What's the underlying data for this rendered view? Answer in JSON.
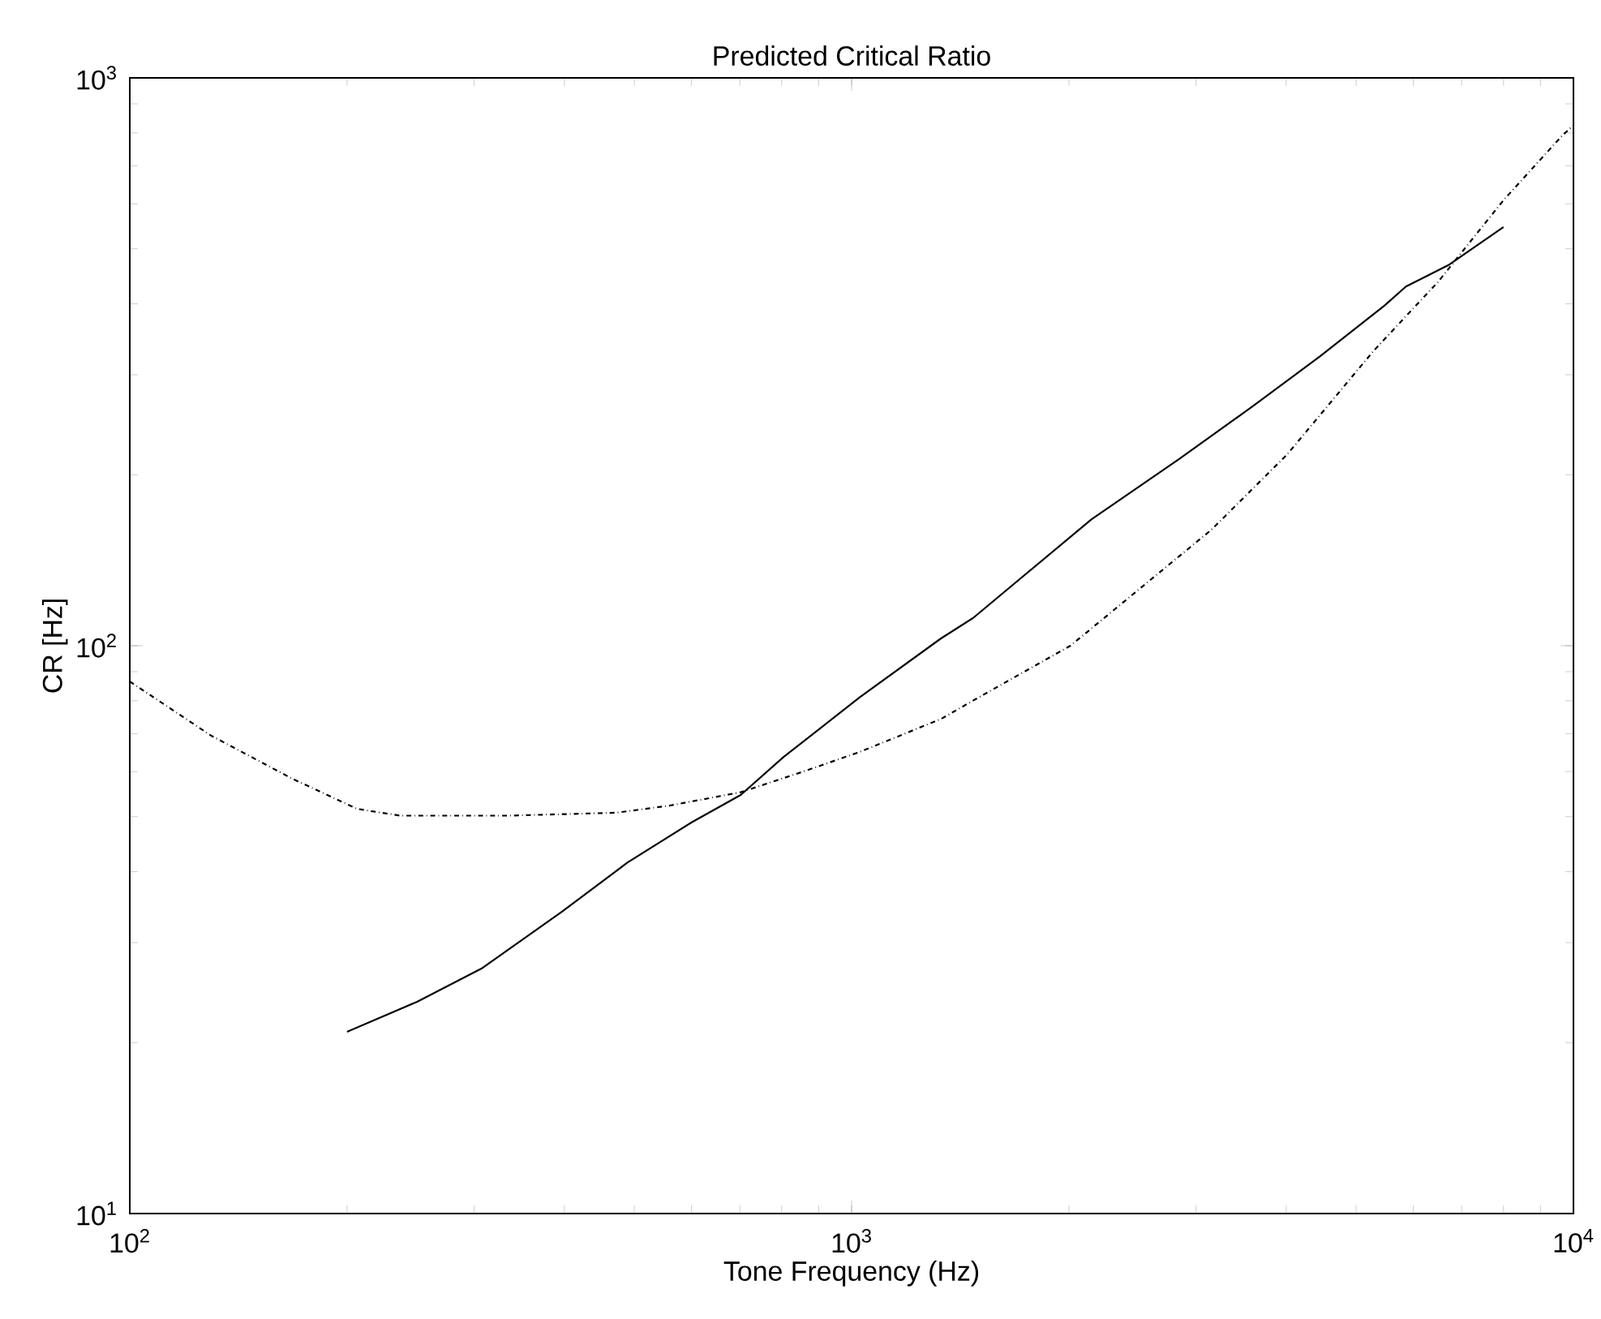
{
  "chart_data": {
    "type": "line",
    "title": "Predicted Critical Ratio",
    "xlabel": "Tone Frequency (Hz)",
    "ylabel": "CR [Hz]",
    "log": "xy",
    "xlim": [
      100,
      10000
    ],
    "ylim": [
      10,
      1000
    ],
    "xticks": [
      {
        "value": 100,
        "label": "10$^{2}$"
      },
      {
        "value": 1000,
        "label": "10$^{3}$"
      },
      {
        "value": 10000,
        "label": "10$^{4}$"
      }
    ],
    "yticks": [
      {
        "value": 10,
        "label": "10$^{1}$"
      },
      {
        "value": 100,
        "label": "10$^{2}$"
      },
      {
        "value": 1000,
        "label": "10$^{3}$"
      }
    ],
    "grid": false,
    "series": [
      {
        "color": "#000000",
        "line_style": "solid",
        "x": [
          200,
          250,
          307,
          397,
          489,
          601,
          702,
          805,
          1026,
          1330,
          1475,
          2150,
          2840,
          3610,
          4450,
          5470,
          5860,
          6730,
          8000
        ],
        "values": [
          20.9,
          23.6,
          27.0,
          34.0,
          41.5,
          48.9,
          54.6,
          63.7,
          81.1,
          103,
          112,
          167,
          213,
          265,
          323,
          397,
          429,
          469,
          546
        ]
      },
      {
        "color": "#000000",
        "line_style": "dashdot",
        "x": [
          100,
          129.5,
          168,
          206.5,
          237,
          334,
          472,
          560,
          702,
          863,
          1026,
          1330,
          1500,
          2010,
          3150,
          4010,
          5280,
          6500,
          8000,
          9660,
          10000
        ],
        "values": [
          86.5,
          69.5,
          58.3,
          51.6,
          50.2,
          50.2,
          50.8,
          52.3,
          55.2,
          60.2,
          65.0,
          74.3,
          81.1,
          100,
          160,
          217,
          330,
          438,
          609,
          793,
          825
        ]
      }
    ]
  }
}
